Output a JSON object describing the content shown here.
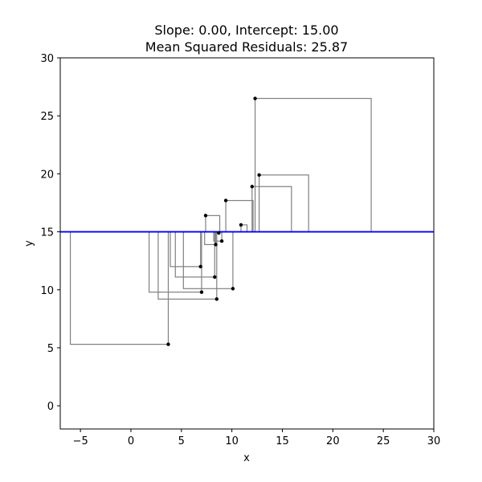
{
  "chart_data": {
    "type": "scatter",
    "title_line1": "Slope: 0.00, Intercept: 15.00",
    "title_line2": "Mean Squared Residuals: 25.87",
    "xlabel": "x",
    "ylabel": "y",
    "xlim": [
      -7,
      30
    ],
    "ylim": [
      -2,
      30
    ],
    "xticks": [
      -5,
      0,
      5,
      10,
      15,
      20,
      25,
      30
    ],
    "yticks": [
      0,
      5,
      10,
      15,
      20,
      25,
      30
    ],
    "xtick_labels": [
      "−5",
      "0",
      "5",
      "10",
      "15",
      "20",
      "25",
      "30"
    ],
    "ytick_labels": [
      "0",
      "5",
      "10",
      "15",
      "20",
      "25",
      "30"
    ],
    "line": {
      "slope": 0.0,
      "intercept": 15.0,
      "color": "#0000ff"
    },
    "points": [
      {
        "x": 3.7,
        "y": 5.3
      },
      {
        "x": 7.0,
        "y": 9.8
      },
      {
        "x": 8.5,
        "y": 9.2
      },
      {
        "x": 10.1,
        "y": 10.1
      },
      {
        "x": 8.3,
        "y": 11.1
      },
      {
        "x": 6.9,
        "y": 12.0
      },
      {
        "x": 8.4,
        "y": 13.9
      },
      {
        "x": 9.0,
        "y": 14.2
      },
      {
        "x": 8.7,
        "y": 14.9
      },
      {
        "x": 7.4,
        "y": 16.4
      },
      {
        "x": 10.9,
        "y": 15.6
      },
      {
        "x": 9.4,
        "y": 17.7
      },
      {
        "x": 12.0,
        "y": 18.9
      },
      {
        "x": 12.7,
        "y": 19.9
      },
      {
        "x": 12.3,
        "y": 26.5
      }
    ],
    "residual_square_color": "#808080",
    "line_color": "#0000ff"
  }
}
